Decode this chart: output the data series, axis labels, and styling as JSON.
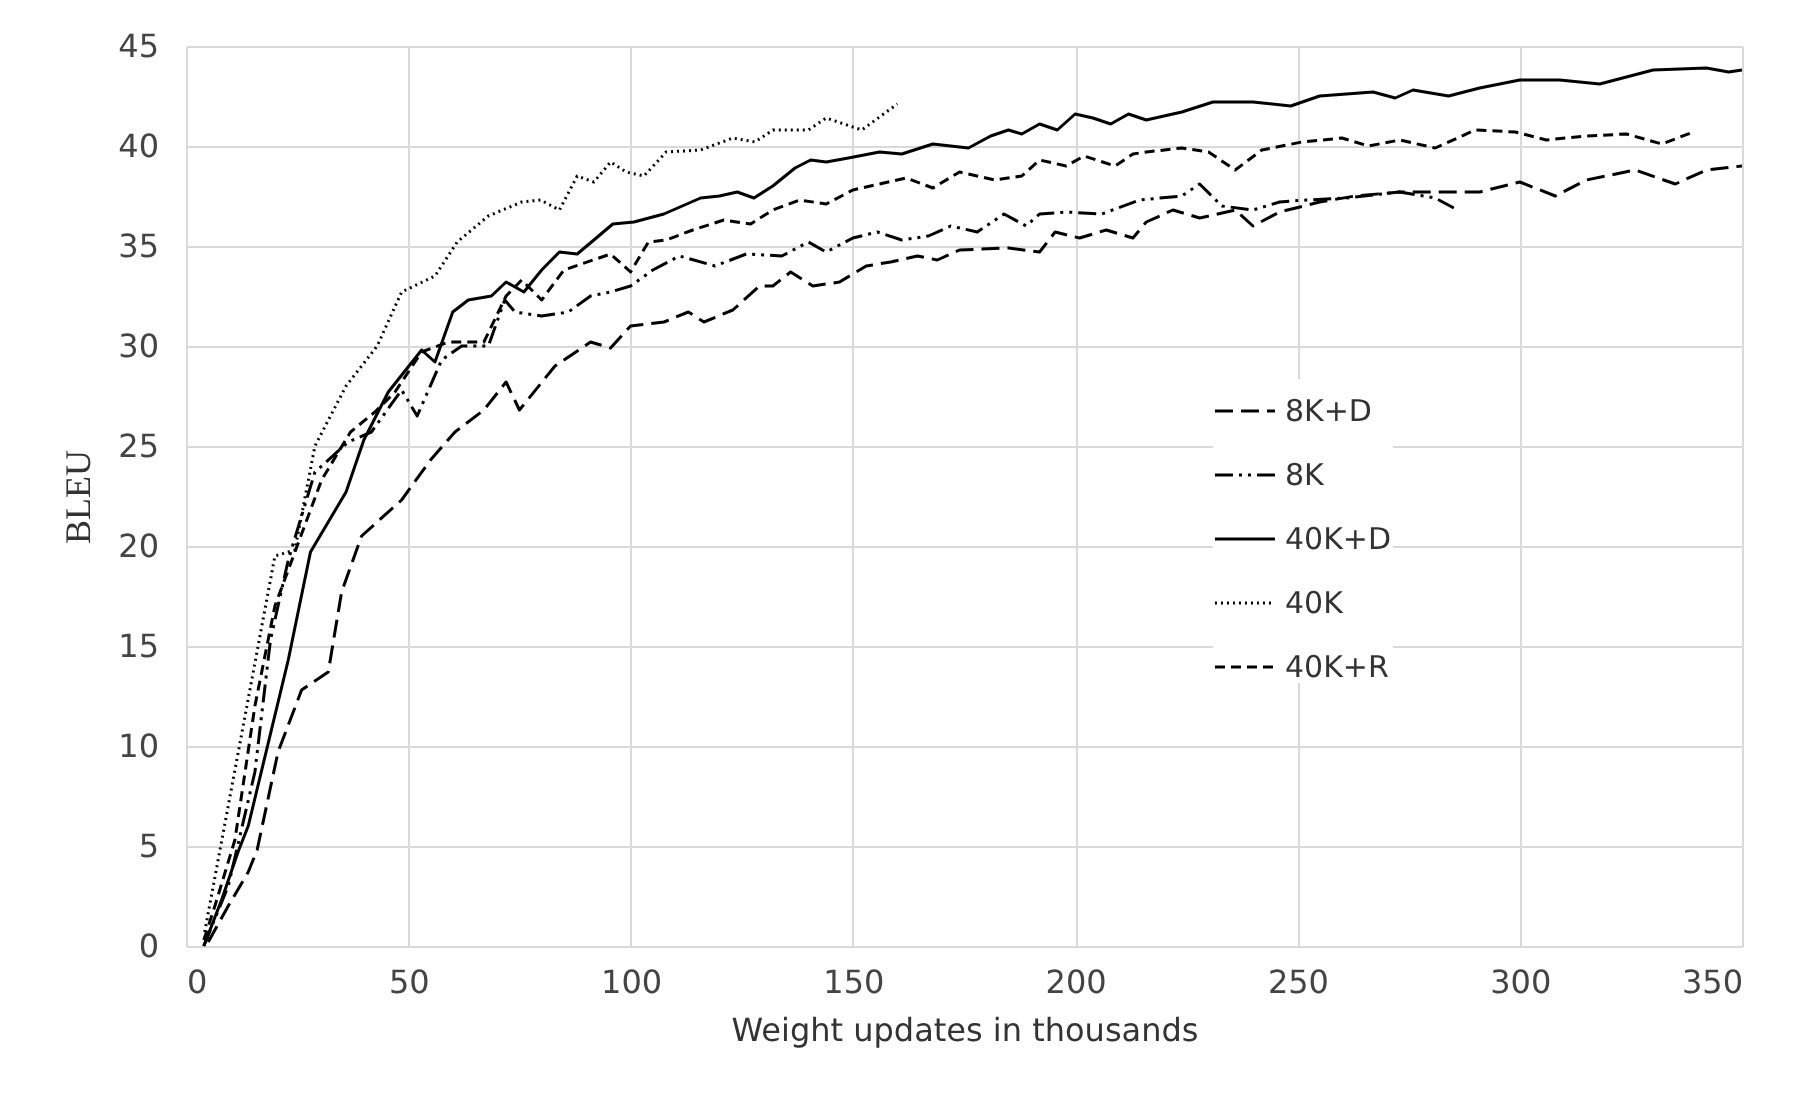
{
  "chart_data": {
    "type": "line",
    "xlabel": "Weight updates in thousands",
    "ylabel": "BLEU",
    "xlim": [
      0,
      350
    ],
    "xticks": [
      0,
      50,
      100,
      150,
      200,
      250,
      300,
      350
    ],
    "ylim": [
      0,
      45
    ],
    "yticks": [
      0,
      5,
      10,
      15,
      20,
      25,
      30,
      35,
      40,
      45
    ],
    "grid": true,
    "legend": "right",
    "series": [
      {
        "name": "8K+D",
        "color": "#000000",
        "line_style": "longdash",
        "x": [
          5,
          9.5,
          14,
          16,
          20.7,
          26,
          32,
          35,
          39.5,
          48.5,
          55,
          60.5,
          67,
          72,
          75,
          83,
          91,
          95.5,
          100,
          107.5,
          113,
          116.5,
          123,
          129,
          132,
          136,
          141,
          147,
          153,
          158.5,
          164.5,
          169,
          174,
          185,
          192,
          195.5,
          201,
          207,
          213,
          216,
          222,
          228,
          236,
          240,
          246,
          255,
          263,
          273,
          282,
          291,
          300,
          308,
          315,
          326,
          335,
          342,
          350
        ],
        "values": [
          0.2,
          2,
          3.7,
          4.8,
          9.7,
          12.8,
          13.7,
          17.7,
          20.5,
          22.3,
          24.3,
          25.7,
          26.8,
          28.2,
          26.8,
          29,
          30.2,
          29.9,
          31,
          31.2,
          31.7,
          31.2,
          31.8,
          33,
          33,
          33.7,
          33,
          33.2,
          34,
          34.2,
          34.5,
          34.3,
          34.8,
          34.9,
          34.7,
          35.7,
          35.4,
          35.8,
          35.4,
          36.2,
          36.8,
          36.4,
          36.8,
          36,
          36.7,
          37.2,
          37.5,
          37.7,
          37.7,
          37.7,
          38.2,
          37.5,
          38.3,
          38.8,
          38.1,
          38.8,
          39
        ]
      },
      {
        "name": "8K",
        "color": "#000000",
        "line_style": "dashdot",
        "x": [
          4,
          9.5,
          15.5,
          19,
          23,
          29,
          36.5,
          41.7,
          48.5,
          52,
          57.5,
          62,
          68,
          71.7,
          74,
          80,
          86,
          91,
          95.5,
          100,
          105,
          111,
          119,
          126,
          134,
          140,
          144,
          150,
          155.5,
          161,
          167,
          172,
          178,
          184,
          189,
          192,
          198,
          206,
          214.5,
          224,
          228,
          233,
          240,
          246,
          252,
          261,
          273,
          281,
          286
        ],
        "values": [
          0,
          3,
          8.7,
          15.3,
          19.3,
          23.7,
          25.2,
          25.7,
          27.8,
          26.5,
          29.3,
          30,
          30,
          32.3,
          31.7,
          31.5,
          31.7,
          32.5,
          32.7,
          33,
          33.8,
          34.5,
          34,
          34.6,
          34.5,
          35.2,
          34.7,
          35.4,
          35.7,
          35.3,
          35.5,
          36,
          35.7,
          36.6,
          36,
          36.6,
          36.7,
          36.6,
          37.3,
          37.5,
          38.1,
          37,
          36.8,
          37.2,
          37.3,
          37.4,
          37.7,
          37.4,
          36.8
        ]
      },
      {
        "name": "40K+D",
        "color": "#000000",
        "line_style": "solid",
        "x": [
          4,
          8,
          11.7,
          14,
          23,
          28,
          36,
          40,
          45.5,
          53,
          56,
          60,
          63.5,
          68.7,
          72,
          76,
          80,
          84,
          88,
          91.75,
          96,
          100.75,
          107.5,
          115.75,
          120,
          124,
          127.75,
          132,
          137,
          140.5,
          144,
          149,
          156,
          161,
          168,
          176,
          181,
          185,
          188,
          192,
          196,
          200,
          204,
          208,
          212,
          216,
          224,
          231,
          240,
          248.5,
          255,
          267,
          272,
          276,
          284,
          291,
          300,
          309,
          318,
          330,
          342,
          347,
          350
        ],
        "values": [
          0,
          2.3,
          4.7,
          6,
          14.3,
          19.7,
          22.7,
          25.3,
          27.7,
          29.8,
          29.2,
          31.7,
          32.3,
          32.5,
          33.2,
          32.7,
          33.8,
          34.7,
          34.6,
          35.3,
          36.1,
          36.2,
          36.6,
          37.4,
          37.5,
          37.7,
          37.4,
          38,
          38.9,
          39.3,
          39.2,
          39.4,
          39.7,
          39.6,
          40.1,
          39.9,
          40.5,
          40.8,
          40.6,
          41.1,
          40.8,
          41.6,
          41.4,
          41.1,
          41.6,
          41.3,
          41.7,
          42.2,
          42.2,
          42,
          42.5,
          42.7,
          42.4,
          42.8,
          42.5,
          42.9,
          43.3,
          43.3,
          43.1,
          43.8,
          43.9,
          43.7,
          43.8
        ]
      },
      {
        "name": "40K",
        "color": "#000000",
        "line_style": "dotted",
        "x": [
          4.2,
          20,
          24.5,
          29,
          36,
          43,
          48.5,
          56,
          61,
          68,
          75.5,
          79.75,
          84,
          88,
          91.75,
          95.5,
          99,
          103,
          108,
          115.75,
          123,
          128,
          132,
          140,
          144,
          152,
          160
        ],
        "values": [
          0.7,
          19.5,
          19.8,
          25,
          28,
          30,
          32.7,
          33.5,
          35.2,
          36.5,
          37.2,
          37.3,
          36.8,
          38.5,
          38.2,
          39.2,
          38.7,
          38.5,
          39.7,
          39.8,
          40.4,
          40.2,
          40.8,
          40.8,
          41.4,
          40.8,
          42.1
        ]
      },
      {
        "name": "40K+R",
        "color": "#000000",
        "line_style": "dashed",
        "x": [
          4,
          6.5,
          11,
          15.5,
          20,
          25,
          30.5,
          37,
          42.5,
          47,
          53,
          59,
          67,
          72,
          75.5,
          80,
          85,
          95.5,
          100,
          104,
          108,
          114,
          121,
          127,
          132,
          138,
          144,
          150,
          156,
          162,
          168,
          174,
          182,
          188,
          192,
          198,
          202,
          209,
          213,
          216,
          224,
          230,
          236,
          242,
          251,
          260,
          266,
          273,
          281,
          290,
          299,
          306,
          315,
          324,
          332,
          339
        ],
        "values": [
          0.3,
          2,
          5.3,
          12,
          17,
          20,
          23.3,
          25.7,
          26.7,
          27.7,
          29.7,
          30.2,
          30.2,
          32.5,
          33.3,
          32.3,
          33.8,
          34.6,
          33.7,
          35.2,
          35.3,
          35.8,
          36.3,
          36.1,
          36.8,
          37.3,
          37.1,
          37.8,
          38.1,
          38.4,
          37.9,
          38.7,
          38.3,
          38.5,
          39.3,
          39,
          39.5,
          39,
          39.6,
          39.7,
          39.9,
          39.7,
          38.8,
          39.8,
          40.2,
          40.4,
          40,
          40.3,
          39.9,
          40.8,
          40.7,
          40.3,
          40.5,
          40.6,
          40.1,
          40.7
        ]
      }
    ]
  }
}
